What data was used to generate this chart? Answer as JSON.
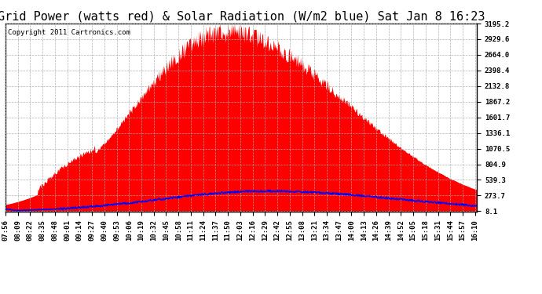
{
  "title": "Grid Power (watts red) & Solar Radiation (W/m2 blue) Sat Jan 8 16:23",
  "copyright_text": "Copyright 2011 Cartronics.com",
  "yticks": [
    8.1,
    273.7,
    539.3,
    804.9,
    1070.5,
    1336.1,
    1601.7,
    1867.2,
    2132.8,
    2398.4,
    2664.0,
    2929.6,
    3195.2
  ],
  "ymin": 0,
  "ymax": 3195.2,
  "background_color": "#ffffff",
  "fill_color": "red",
  "line_color": "blue",
  "grid_color": "#aaaaaa",
  "title_fontsize": 11,
  "tick_fontsize": 6.5,
  "copyright_fontsize": 6.5
}
